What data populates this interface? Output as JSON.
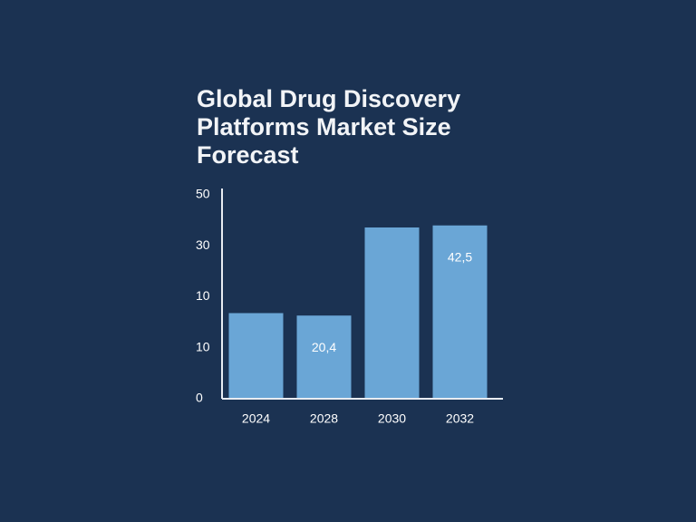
{
  "chart_data": {
    "type": "bar",
    "title": [
      "Global Drug Discovery",
      "Platforms Market Size",
      "Forecast"
    ],
    "categories": [
      "2024",
      "2028",
      "2030",
      "2032"
    ],
    "values": [
      21,
      20.4,
      42,
      42.5
    ],
    "value_labels": [
      null,
      "20,4",
      null,
      "42,5"
    ],
    "color": "#6aa6d6",
    "ylim": [
      0,
      50
    ],
    "yticks": [
      0,
      {
        "value": 12.5,
        "label": "10"
      },
      {
        "value": 25,
        "label": "10"
      },
      {
        "value": 37.5,
        "label": "30"
      },
      50
    ],
    "grid": false
  }
}
